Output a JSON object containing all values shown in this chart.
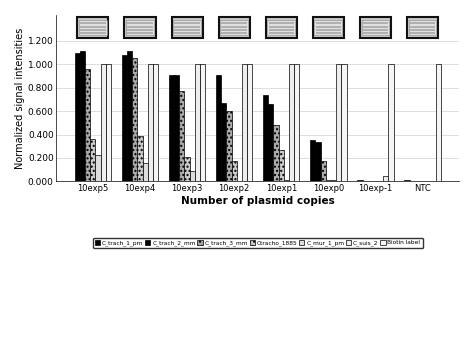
{
  "categories": [
    "10exp5",
    "10exp4",
    "10exp3",
    "10exp2",
    "10exp1",
    "10exp0",
    "10exp-1",
    "NTC"
  ],
  "series": {
    "C_trach_1_pm": [
      1.1,
      1.08,
      0.91,
      0.91,
      0.74,
      0.35,
      0.008,
      0.008
    ],
    "C_trach_2_mm": [
      1.11,
      1.11,
      0.91,
      0.67,
      0.66,
      0.34,
      0.0,
      0.005
    ],
    "C_trach_3_mm": [
      0.96,
      1.05,
      0.775,
      0.6,
      0.48,
      0.175,
      0.0,
      0.0
    ],
    "Ctracho_1885": [
      0.36,
      0.385,
      0.205,
      0.175,
      0.27,
      0.01,
      0.0,
      0.0
    ],
    "C_mur_1_pm": [
      0.225,
      0.16,
      0.085,
      0.005,
      0.01,
      0.01,
      0.0,
      0.0
    ],
    "C_suis_2": [
      1.0,
      1.0,
      1.0,
      1.0,
      1.0,
      1.0,
      0.05,
      0.0
    ],
    "Biotin label": [
      1.0,
      1.0,
      1.0,
      1.0,
      1.0,
      1.0,
      1.0,
      1.0
    ]
  },
  "facecolors": {
    "C_trach_1_pm": "#000000",
    "C_trach_2_mm": "#000000",
    "C_trach_3_mm": "#aaaaaa",
    "Ctracho_1885": "#cccccc",
    "C_mur_1_pm": "#dddddd",
    "C_suis_2": "#eeeeee",
    "Biotin label": "#f5f5f5"
  },
  "hatches": {
    "C_trach_1_pm": "",
    "C_trach_2_mm": "////",
    "C_trach_3_mm": "....",
    "Ctracho_1885": "....",
    "C_mur_1_pm": "",
    "C_suis_2": "",
    "Biotin label": ""
  },
  "yticks": [
    0.0,
    0.2,
    0.4,
    0.6,
    0.8,
    1.0,
    1.2
  ],
  "ylabel": "Normalized signal intensities",
  "xlabel": "Number of plasmid copies",
  "background_color": "#ffffff",
  "grid_color": "#d0d0d0"
}
